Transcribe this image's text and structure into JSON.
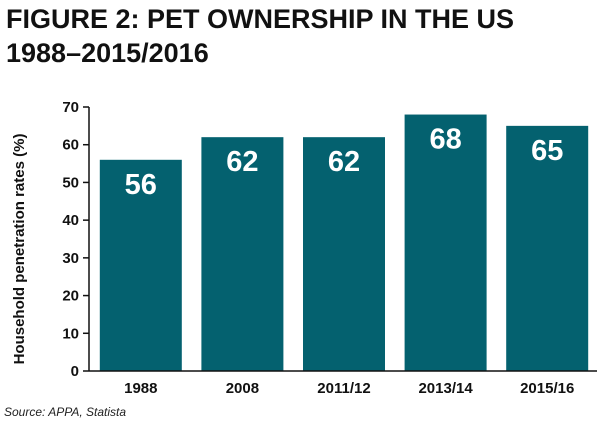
{
  "figure": {
    "title_line_1": "FIGURE 2: PET OWNERSHIP IN THE US",
    "title_line_2": "1988–2015/2016",
    "source": "Source: APPA, Statista"
  },
  "chart_data": {
    "type": "bar",
    "categories": [
      "1988",
      "2008",
      "2011/12",
      "2013/14",
      "2015/16"
    ],
    "values": [
      56,
      62,
      62,
      68,
      65
    ],
    "data_labels": [
      "56",
      "62",
      "62",
      "68",
      "65"
    ],
    "ylabel": "Household penetration rates (%)",
    "xlabel": "",
    "ylim": [
      0,
      70
    ],
    "yticks": [
      0,
      10,
      20,
      30,
      40,
      50,
      60,
      70
    ],
    "grid": false,
    "legend": "none",
    "bar_color": "#04616f",
    "label_color": "#ffffff"
  }
}
